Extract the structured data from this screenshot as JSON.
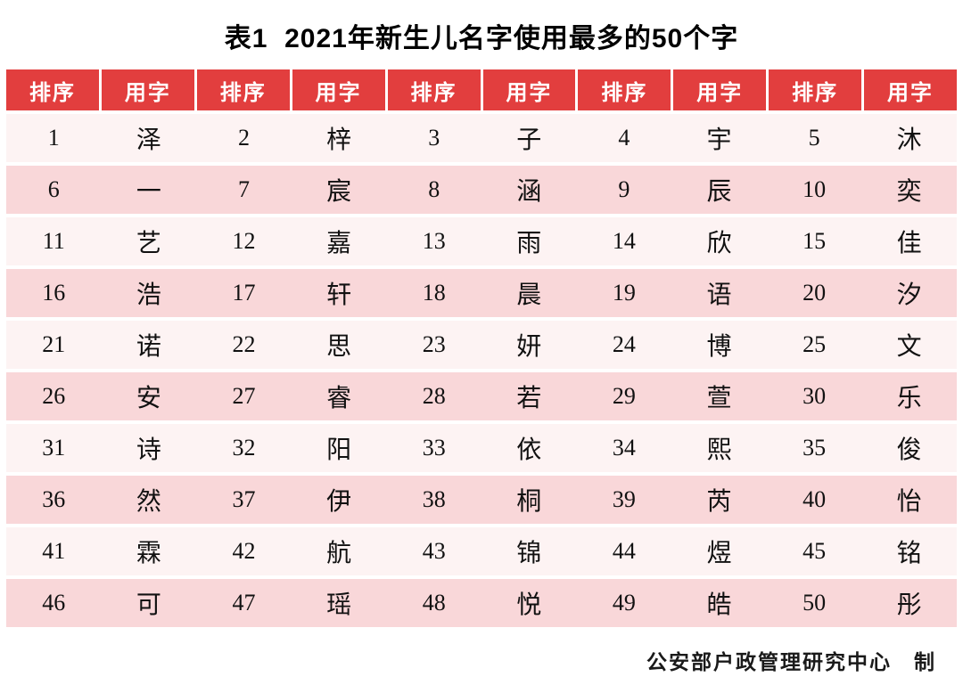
{
  "page": {
    "title": "表1  2021年新生儿名字使用最多的50个字",
    "footer": "公安部户政管理研究中心　制"
  },
  "colors": {
    "header_bg": "#e23e3e",
    "header_text": "#ffffff",
    "row_light": "#fdf3f3",
    "row_dark": "#f9d7d9",
    "title_text": "#000000",
    "footer_text": "#1a1a1a"
  },
  "chart_data": {
    "type": "table",
    "title": "表1 2021年新生儿名字使用最多的50个字",
    "columns": [
      "排序",
      "用字",
      "排序",
      "用字",
      "排序",
      "用字",
      "排序",
      "用字",
      "排序",
      "用字"
    ],
    "rows": [
      [
        "1",
        "泽",
        "2",
        "梓",
        "3",
        "子",
        "4",
        "宇",
        "5",
        "沐"
      ],
      [
        "6",
        "一",
        "7",
        "宸",
        "8",
        "涵",
        "9",
        "辰",
        "10",
        "奕"
      ],
      [
        "11",
        "艺",
        "12",
        "嘉",
        "13",
        "雨",
        "14",
        "欣",
        "15",
        "佳"
      ],
      [
        "16",
        "浩",
        "17",
        "轩",
        "18",
        "晨",
        "19",
        "语",
        "20",
        "汐"
      ],
      [
        "21",
        "诺",
        "22",
        "思",
        "23",
        "妍",
        "24",
        "博",
        "25",
        "文"
      ],
      [
        "26",
        "安",
        "27",
        "睿",
        "28",
        "若",
        "29",
        "萱",
        "30",
        "乐"
      ],
      [
        "31",
        "诗",
        "32",
        "阳",
        "33",
        "依",
        "34",
        "熙",
        "35",
        "俊"
      ],
      [
        "36",
        "然",
        "37",
        "伊",
        "38",
        "桐",
        "39",
        "芮",
        "40",
        "怡"
      ],
      [
        "41",
        "霖",
        "42",
        "航",
        "43",
        "锦",
        "44",
        "煜",
        "45",
        "铭"
      ],
      [
        "46",
        "可",
        "47",
        "瑶",
        "48",
        "悦",
        "49",
        "皓",
        "50",
        "彤"
      ]
    ],
    "source": "公安部户政管理研究中心 制"
  }
}
